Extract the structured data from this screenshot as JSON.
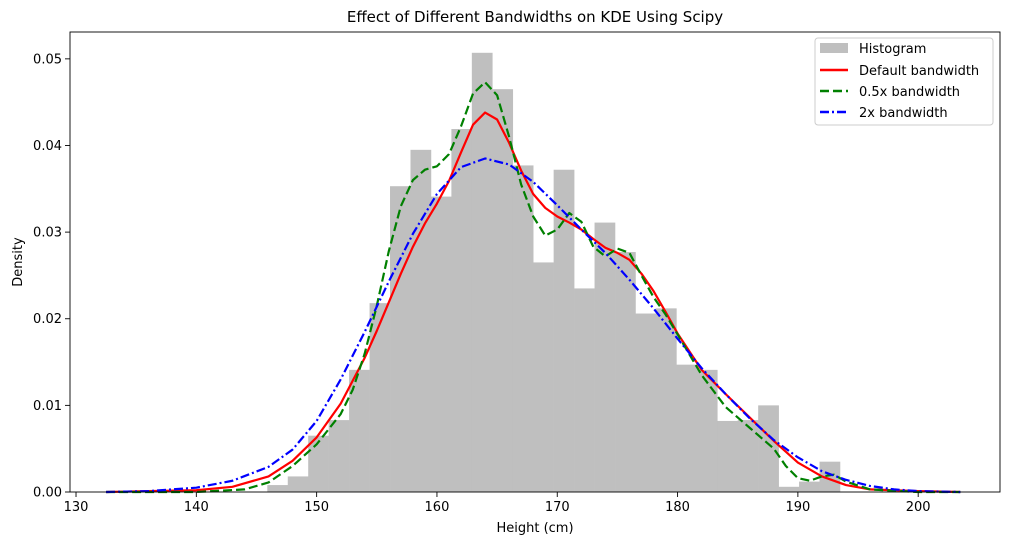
{
  "chart_data": {
    "type": "bar",
    "title": "Effect of Different Bandwidths on KDE Using Scipy",
    "xlabel": "Height (cm)",
    "ylabel": "Density",
    "xlim": [
      129.5,
      206.8
    ],
    "ylim": [
      0,
      0.0531
    ],
    "xticks": [
      130,
      140,
      150,
      160,
      170,
      180,
      190,
      200
    ],
    "yticks": [
      0.0,
      0.01,
      0.02,
      0.03,
      0.04,
      0.05
    ],
    "ytick_labels": [
      "0.00",
      "0.01",
      "0.02",
      "0.03",
      "0.04",
      "0.05"
    ],
    "grid": false,
    "legend_position": "top-right",
    "histogram": {
      "name": "Histogram",
      "color": "#bfbfbf",
      "bin_edges": [
        145.9,
        147.6,
        149.3,
        151.0,
        152.7,
        154.4,
        156.1,
        157.8,
        159.5,
        161.2,
        162.9,
        164.6,
        166.3,
        168.0,
        169.7,
        171.4,
        173.1,
        174.8,
        176.5,
        178.2,
        179.9,
        181.6,
        183.3,
        185.0,
        186.7,
        188.4,
        190.1,
        191.8,
        193.5
      ],
      "values": [
        0.0008,
        0.0018,
        0.0065,
        0.0083,
        0.0141,
        0.0218,
        0.0353,
        0.0395,
        0.0341,
        0.0419,
        0.0507,
        0.0465,
        0.0377,
        0.0265,
        0.0372,
        0.0235,
        0.0311,
        0.0277,
        0.0206,
        0.0212,
        0.0147,
        0.0141,
        0.0082,
        0.0083,
        0.01,
        0.0006,
        0.0012,
        0.0035
      ]
    },
    "series": [
      {
        "name": "Default bandwidth",
        "color": "#ff0000",
        "style": "solid",
        "x": [
          132.5,
          136,
          140,
          143,
          146,
          148,
          150,
          152,
          154,
          155,
          156,
          157,
          158,
          159,
          160,
          161,
          162,
          163,
          164,
          165,
          166,
          167,
          168,
          169,
          170,
          171,
          172,
          173,
          174,
          175,
          176,
          177,
          178,
          179,
          180,
          182,
          184,
          186,
          188,
          190,
          192,
          194,
          196,
          200,
          203.5
        ],
        "y": [
          0.0,
          0.0001,
          0.0002,
          0.0006,
          0.0018,
          0.0036,
          0.0063,
          0.0102,
          0.0155,
          0.0186,
          0.0219,
          0.0252,
          0.0283,
          0.031,
          0.0333,
          0.0359,
          0.0392,
          0.0424,
          0.0438,
          0.043,
          0.0403,
          0.0371,
          0.0344,
          0.0328,
          0.0318,
          0.0311,
          0.0303,
          0.0292,
          0.0282,
          0.0276,
          0.0268,
          0.0252,
          0.0232,
          0.0208,
          0.0183,
          0.0141,
          0.0113,
          0.0086,
          0.0059,
          0.0034,
          0.0018,
          0.0008,
          0.0003,
          0.0001,
          0.0
        ]
      },
      {
        "name": "0.5x bandwidth",
        "color": "#008000",
        "style": "dashed",
        "x": [
          132.5,
          140,
          144,
          146,
          148,
          150,
          152,
          153,
          154,
          155,
          156,
          157,
          158,
          159,
          160,
          161,
          162,
          163,
          164,
          165,
          166,
          167,
          168,
          169,
          170,
          171,
          172,
          173,
          174,
          175,
          176,
          177,
          178,
          179,
          180,
          182,
          184,
          186,
          188,
          189,
          190,
          191,
          192,
          193,
          194,
          196,
          200,
          203.5
        ],
        "y": [
          0.0,
          0.0,
          0.0003,
          0.0011,
          0.003,
          0.0055,
          0.009,
          0.0118,
          0.016,
          0.0215,
          0.0278,
          0.033,
          0.036,
          0.0372,
          0.0376,
          0.039,
          0.0422,
          0.046,
          0.0473,
          0.0458,
          0.041,
          0.0355,
          0.0318,
          0.0296,
          0.0303,
          0.0322,
          0.0312,
          0.0283,
          0.0272,
          0.0281,
          0.0276,
          0.025,
          0.0225,
          0.0205,
          0.0182,
          0.0135,
          0.0098,
          0.0074,
          0.005,
          0.003,
          0.0016,
          0.0013,
          0.0018,
          0.002,
          0.0012,
          0.0003,
          0.0,
          0.0
        ]
      },
      {
        "name": "2x bandwidth",
        "color": "#0000ff",
        "style": "dashdot",
        "x": [
          132.5,
          136,
          140,
          143,
          146,
          148,
          150,
          152,
          154,
          156,
          158,
          160,
          162,
          164,
          166,
          168,
          170,
          172,
          174,
          176,
          178,
          180,
          182,
          184,
          186,
          188,
          190,
          192,
          194,
          196,
          198,
          200,
          203.5
        ],
        "y": [
          0.0,
          0.0001,
          0.0005,
          0.0013,
          0.0029,
          0.0049,
          0.0082,
          0.013,
          0.0185,
          0.0243,
          0.0298,
          0.0344,
          0.0375,
          0.0385,
          0.0378,
          0.0358,
          0.0331,
          0.0303,
          0.0276,
          0.0245,
          0.0212,
          0.0177,
          0.0143,
          0.0113,
          0.0085,
          0.006,
          0.004,
          0.0024,
          0.0014,
          0.0007,
          0.0003,
          0.0001,
          0.0
        ]
      }
    ]
  }
}
